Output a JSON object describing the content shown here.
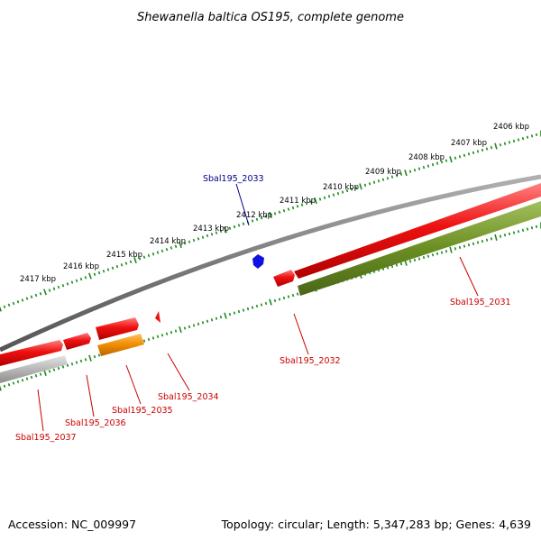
{
  "title": "Shewanella baltica OS195, complete genome",
  "footer": {
    "accession": "Accession: NC_009997",
    "topology": "Topology: circular; Length: 5,347,283 bp; Genes: 4,639"
  },
  "colors": {
    "backbone": "#7a7a7a",
    "ticks": "#1e8a1e",
    "forward_gene": "#ee1111",
    "reverse_gene": "#6b8e23",
    "orange_gene": "#f08c00",
    "gray_gene": "#b8b8b8",
    "blue_gene": "#1010e0",
    "label_red": "#cc0000",
    "label_blue": "#00008b"
  },
  "kbp_labels": [
    "2406 kbp",
    "2407 kbp",
    "2408 kbp",
    "2409 kbp",
    "2410 kbp",
    "2411 kbp",
    "2412 kbp",
    "2413 kbp",
    "2414 kbp",
    "2415 kbp",
    "2416 kbp",
    "2417 kbp"
  ],
  "gene_labels": {
    "g2031": "Sbal195_2031",
    "g2032": "Sbal195_2032",
    "g2033": "Sbal195_2033",
    "g2034": "Sbal195_2034",
    "g2035": "Sbal195_2035",
    "g2036": "Sbal195_2036",
    "g2037": "Sbal195_2037"
  }
}
